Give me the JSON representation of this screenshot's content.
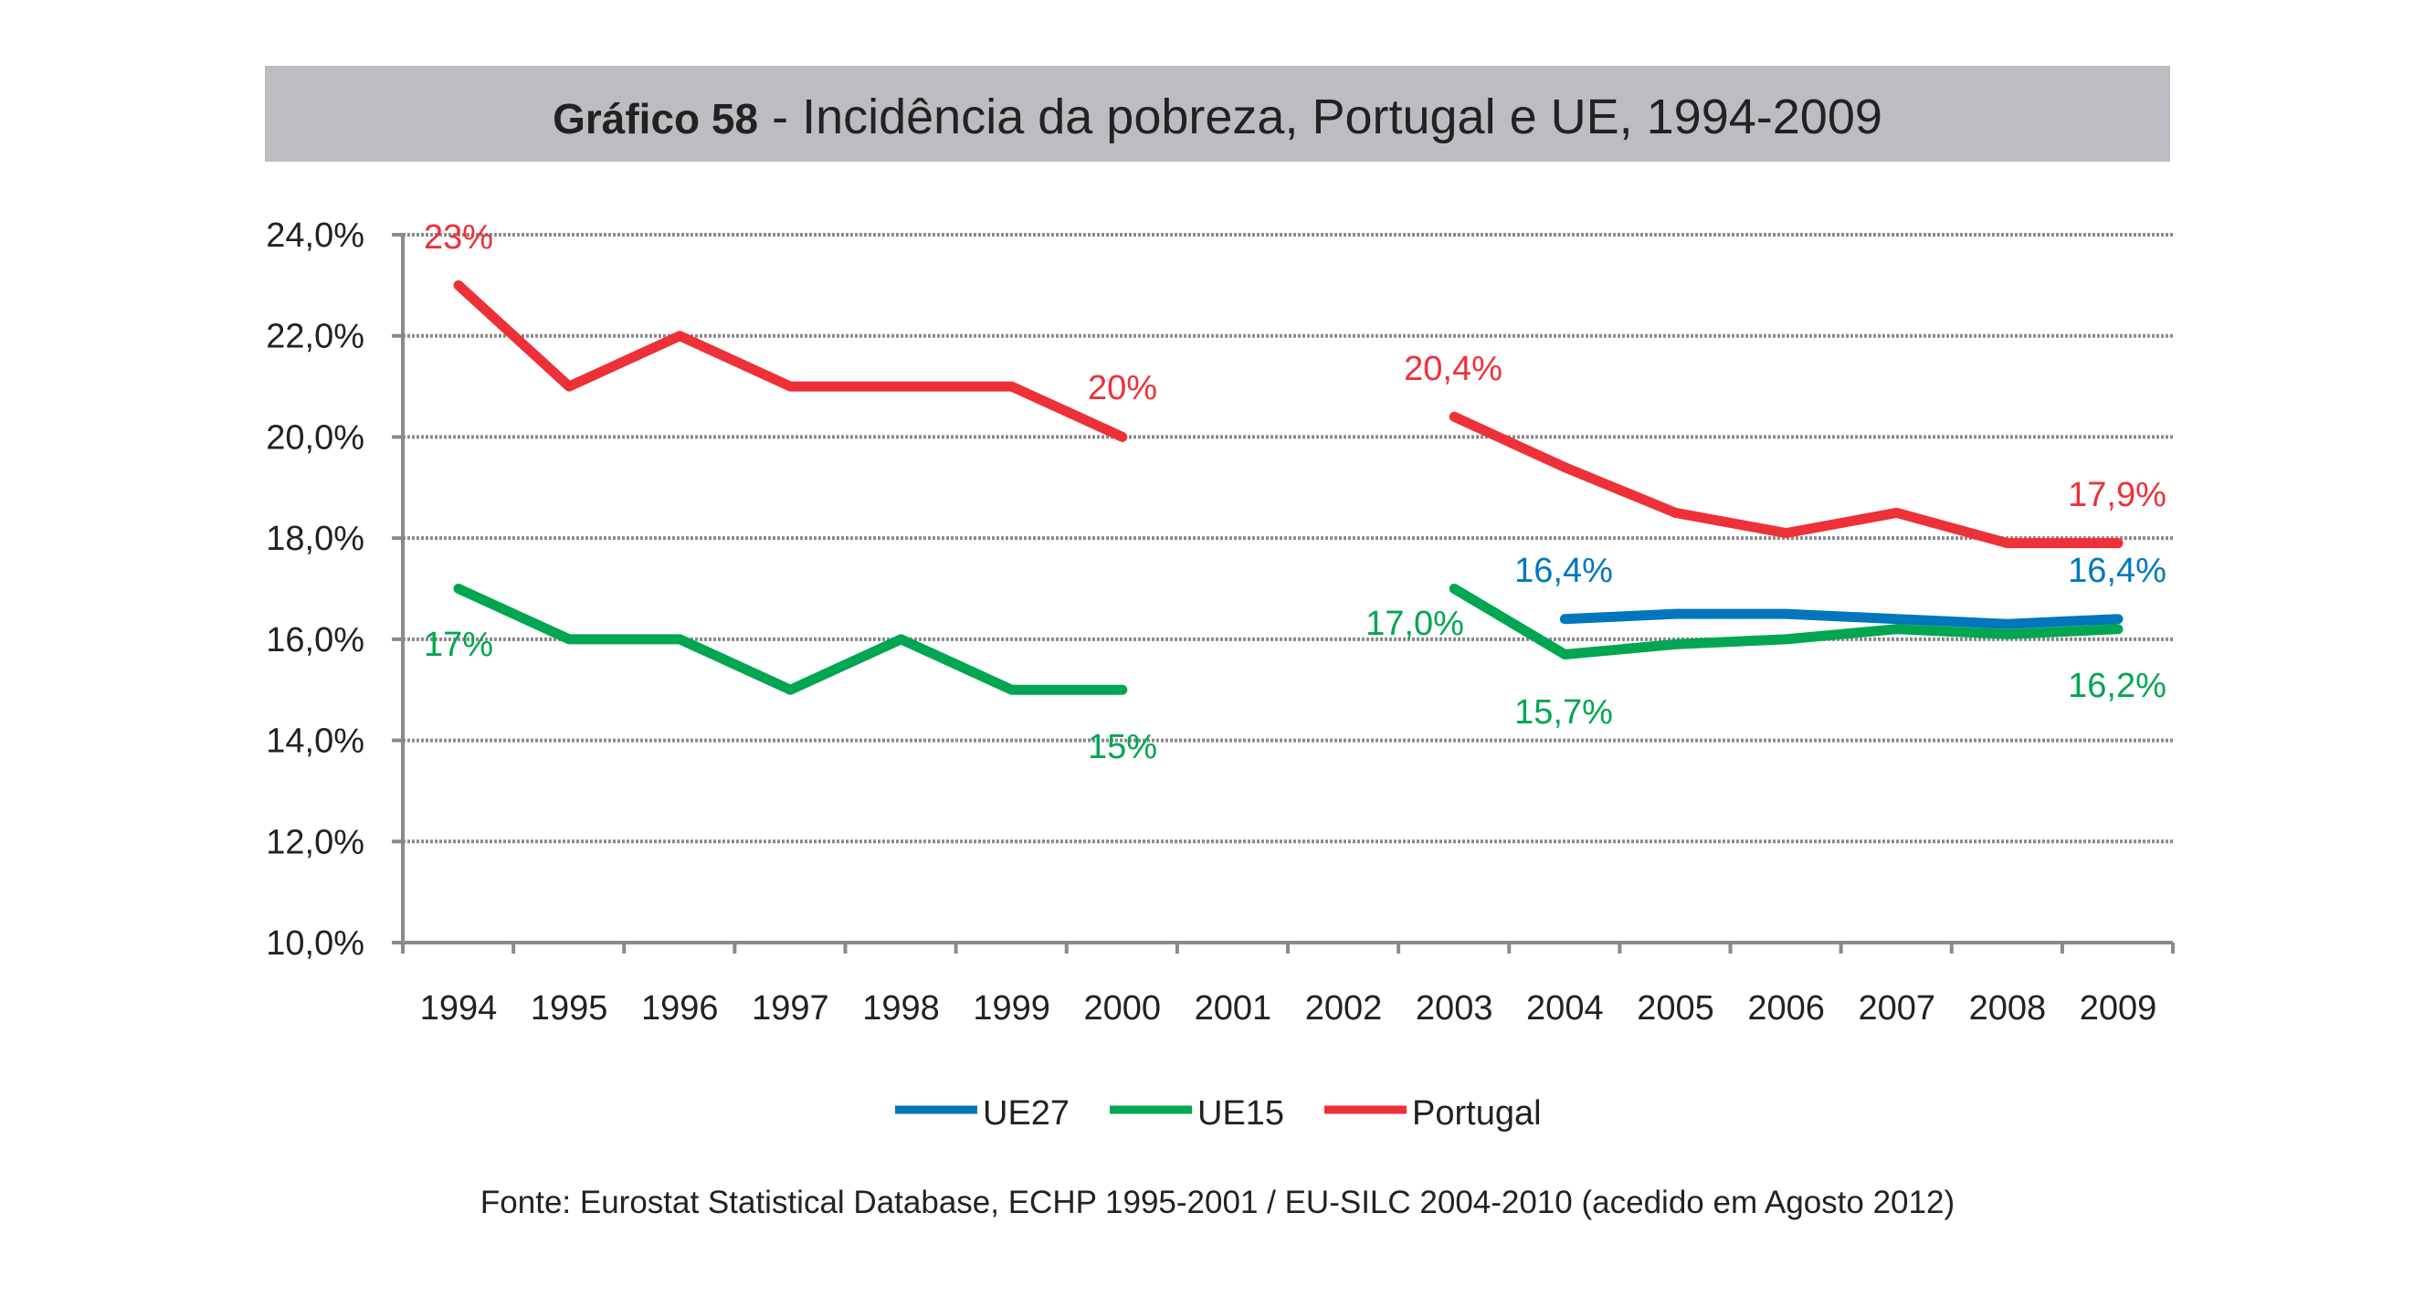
{
  "chart_data": {
    "type": "line",
    "title_bold": "Gráfico 58",
    "title": " - Incidência da pobreza, Portugal e UE, 1994-2009",
    "source": "Fonte: Eurostat Statistical Database, ECHP 1995-2001 / EU-SILC 2004-2010 (acedido em Agosto 2012)",
    "categories": [
      "1994",
      "1995",
      "1996",
      "1997",
      "1998",
      "1999",
      "2000",
      "2001",
      "2002",
      "2003",
      "2004",
      "2005",
      "2006",
      "2007",
      "2008",
      "2009"
    ],
    "ylim": [
      10,
      24
    ],
    "yticks": [
      "10,0%",
      "12,0%",
      "14,0%",
      "16,0%",
      "18,0%",
      "20,0%",
      "22,0%",
      "24,0%"
    ],
    "ytick_values": [
      10,
      12,
      14,
      16,
      18,
      20,
      22,
      24
    ],
    "grid": true,
    "legend_position": "bottom",
    "series": [
      {
        "name": "UE27",
        "color": "#0077bb",
        "values": [
          null,
          null,
          null,
          null,
          null,
          null,
          null,
          null,
          null,
          null,
          16.4,
          16.5,
          16.5,
          16.4,
          16.3,
          16.4
        ]
      },
      {
        "name": "UE15",
        "color": "#00a651",
        "values": [
          17,
          16,
          16,
          15,
          16,
          15,
          15,
          null,
          null,
          17.0,
          15.7,
          15.9,
          16.0,
          16.2,
          16.1,
          16.2
        ]
      },
      {
        "name": "Portugal",
        "color": "#ee3038",
        "values": [
          23,
          21,
          22,
          21,
          21,
          21,
          20,
          null,
          null,
          20.4,
          19.4,
          18.5,
          18.1,
          18.5,
          17.9,
          17.9
        ]
      }
    ],
    "annotations": [
      {
        "text": "23%",
        "series": "Portugal",
        "year": "1994"
      },
      {
        "text": "20%",
        "series": "Portugal",
        "year": "2000"
      },
      {
        "text": "20,4%",
        "series": "Portugal",
        "year": "2003"
      },
      {
        "text": "17,9%",
        "series": "Portugal",
        "year": "2009"
      },
      {
        "text": "17%",
        "series": "UE15",
        "year": "1994"
      },
      {
        "text": "15%",
        "series": "UE15",
        "year": "2000"
      },
      {
        "text": "17,0%",
        "series": "UE15",
        "year": "2003"
      },
      {
        "text": "15,7%",
        "series": "UE15",
        "year": "2004"
      },
      {
        "text": "16,2%",
        "series": "UE15",
        "year": "2009"
      },
      {
        "text": "16,4%",
        "series": "UE27",
        "year": "2004"
      },
      {
        "text": "16,4%",
        "series": "UE27",
        "year": "2009"
      }
    ]
  }
}
